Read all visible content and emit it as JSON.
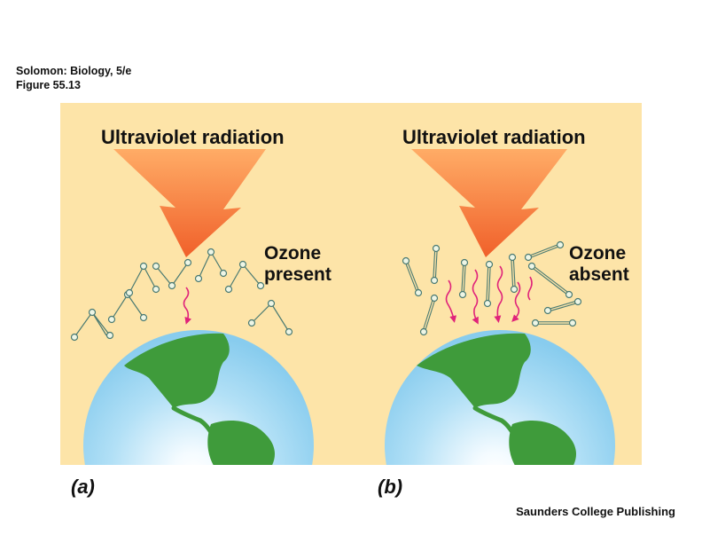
{
  "source": {
    "line1": "Solomon: Biology, 5/e",
    "line2": "Figure 55.13"
  },
  "panel_a": {
    "title": "Ultraviolet radiation",
    "ozone_line1": "Ozone",
    "ozone_line2": "present",
    "label": "(a)"
  },
  "panel_b": {
    "title": "Ultraviolet radiation",
    "ozone_line1": "Ozone",
    "ozone_line2": "absent",
    "label": "(b)"
  },
  "credit": "Saunders College Publishing",
  "colors": {
    "background": "#fde4a8",
    "uv_arrow_top": "#ffa860",
    "uv_arrow_bottom": "#f2642a",
    "ray": "#e0237a",
    "molecule": "#4a7a72",
    "molecule_fill": "#eef6e6",
    "ocean_center": "#ffffff",
    "ocean_edge": "#8fd0ef",
    "land": "#3f9b3b"
  }
}
